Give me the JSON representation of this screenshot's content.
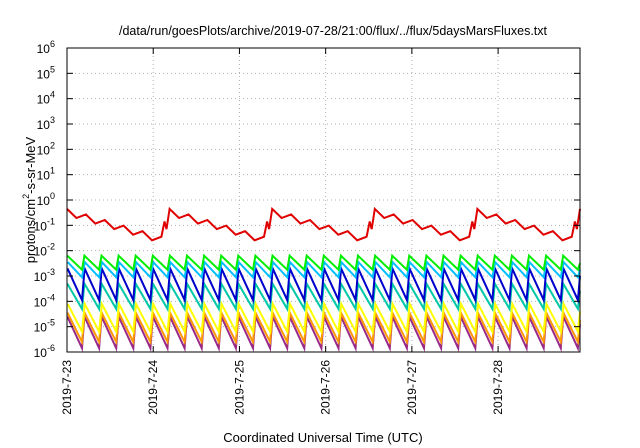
{
  "chart_data": {
    "type": "line",
    "title": "/data/run/goesPlots/archive/2019-07-28/21:00/flux/../flux/5daysMarsFluxes.txt",
    "xlabel": "Coordinated Universal Time (UTC)",
    "ylabel": {
      "prefix": "protons/cm",
      "sup": "2",
      "suffix": "-s-sr-MeV"
    },
    "x_ticks": [
      "2019-7-23",
      "2019-7-24",
      "2019-7-25",
      "2019-7-26",
      "2019-7-27",
      "2019-7-28"
    ],
    "x_range_days": [
      0,
      5.95
    ],
    "y_scale": "log",
    "ylim": [
      1e-06,
      1000000.0
    ],
    "y_ticks": [
      {
        "base": "10",
        "exp": "-6"
      },
      {
        "base": "10",
        "exp": "-5"
      },
      {
        "base": "10",
        "exp": "-4"
      },
      {
        "base": "10",
        "exp": "-3"
      },
      {
        "base": "10",
        "exp": "-2"
      },
      {
        "base": "10",
        "exp": "-1"
      },
      {
        "base": "10",
        "exp": "0"
      },
      {
        "base": "10",
        "exp": "1"
      },
      {
        "base": "10",
        "exp": "2"
      },
      {
        "base": "10",
        "exp": "3"
      },
      {
        "base": "10",
        "exp": "4"
      },
      {
        "base": "10",
        "exp": "5"
      },
      {
        "base": "10",
        "exp": "6"
      }
    ],
    "grid": true,
    "series_colors": [
      "#e00000",
      "#00ee00",
      "#00bfff",
      "#0000cc",
      "#00c8a8",
      "#ffff00",
      "#ff9900",
      "#9a2a8a"
    ],
    "series": [
      {
        "color": "#e00000",
        "sawtooth": {
          "cycles": 5,
          "peak_log": -0.35,
          "trough_log": -1.45,
          "subsaw": 0.25
        }
      },
      {
        "color": "#00ee00",
        "sawtooth": {
          "cycles": 30,
          "peak_log": -2.2,
          "trough_log": -2.75
        }
      },
      {
        "color": "#00bfff",
        "sawtooth": {
          "cycles": 30,
          "peak_log": -2.45,
          "trough_log": -3.05
        }
      },
      {
        "color": "#0000cc",
        "sawtooth": {
          "cycles": 30,
          "peak_log": -2.7,
          "trough_log": -3.95
        }
      },
      {
        "color": "#00c8a8",
        "sawtooth": {
          "cycles": 30,
          "peak_log": -3.3,
          "trough_log": -4.3
        }
      },
      {
        "color": "#ffff00",
        "sawtooth": {
          "cycles": 30,
          "peak_log": -4.1,
          "trough_log": -5.2
        }
      },
      {
        "color": "#ff9900",
        "sawtooth": {
          "cycles": 30,
          "peak_log": -4.45,
          "trough_log": -5.6
        }
      },
      {
        "color": "#9a2a8a",
        "sawtooth": {
          "cycles": 30,
          "peak_log": -4.6,
          "trough_log": -5.85
        }
      }
    ]
  }
}
